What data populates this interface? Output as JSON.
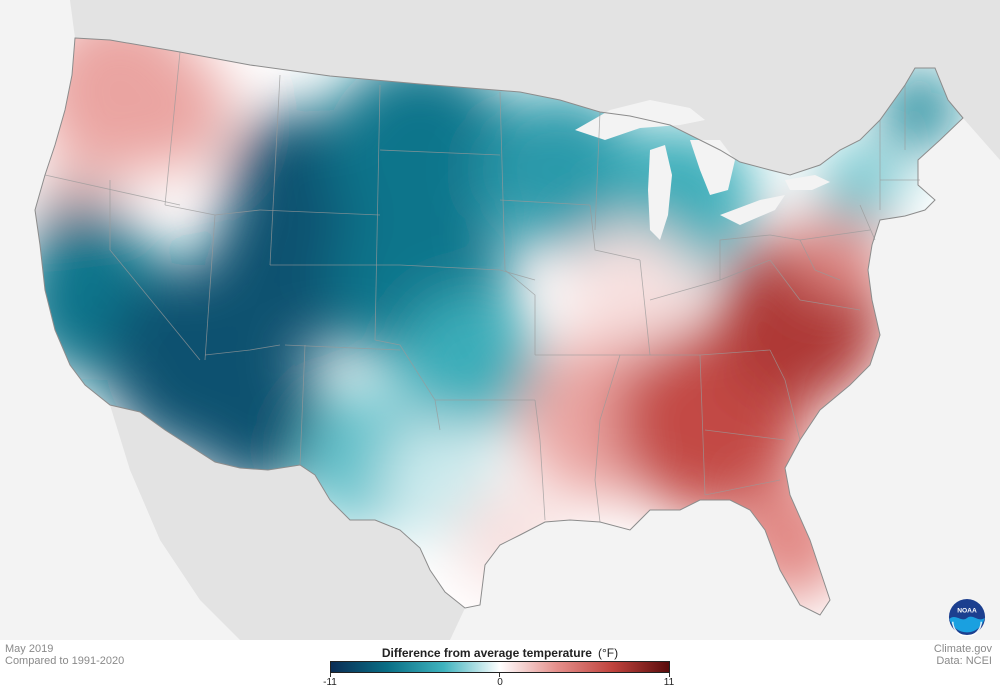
{
  "meta": {
    "date": "May 2019",
    "baseline": "Compared to 1991-2020",
    "source_site": "Climate.gov",
    "data_source": "Data: NCEI"
  },
  "legend": {
    "title": "Difference from average temperature",
    "unit": "(°F)",
    "min_label": "-11",
    "mid_label": "0",
    "max_label": "11",
    "min": -11,
    "max": 11,
    "colors": [
      "#0b2d55",
      "#0a6f86",
      "#3fb3be",
      "#ffffff",
      "#e5908c",
      "#c0433d",
      "#5a0c0c"
    ]
  },
  "logo": {
    "text": "NOAA",
    "colors": [
      "#1c3f8f",
      "#1aa0e0"
    ]
  },
  "map": {
    "region": "contiguous-us",
    "colors": {
      "background": "#f3f3f3",
      "land_outside": "#e3e3e3",
      "water": "#f3f3f3",
      "state_borders": "#9a9a9a"
    },
    "anomaly_zones": [
      {
        "zone": "pacific-northwest",
        "anomaly": 3
      },
      {
        "zone": "northern-california-coast",
        "anomaly": 2
      },
      {
        "zone": "california",
        "anomaly": -7
      },
      {
        "zone": "southwest",
        "anomaly": -9
      },
      {
        "zone": "rockies",
        "anomaly": -9
      },
      {
        "zone": "northern-plains",
        "anomaly": -7
      },
      {
        "zone": "central-plains",
        "anomaly": -7
      },
      {
        "zone": "southern-plains",
        "anomaly": -4
      },
      {
        "zone": "texas-west",
        "anomaly": -3
      },
      {
        "zone": "texas-central",
        "anomaly": -1
      },
      {
        "zone": "gulf-coast-texas",
        "anomaly": 1
      },
      {
        "zone": "upper-midwest",
        "anomaly": -5
      },
      {
        "zone": "great-lakes",
        "anomaly": -4
      },
      {
        "zone": "ohio-valley",
        "anomaly": 1
      },
      {
        "zone": "mid-south",
        "anomaly": 3
      },
      {
        "zone": "southeast",
        "anomaly": 7
      },
      {
        "zone": "carolinas-virginia",
        "anomaly": 8
      },
      {
        "zone": "florida",
        "anomaly": 4
      },
      {
        "zone": "mid-atlantic",
        "anomaly": 4
      },
      {
        "zone": "new-england",
        "anomaly": -3
      },
      {
        "zone": "maine",
        "anomaly": -6
      }
    ]
  }
}
